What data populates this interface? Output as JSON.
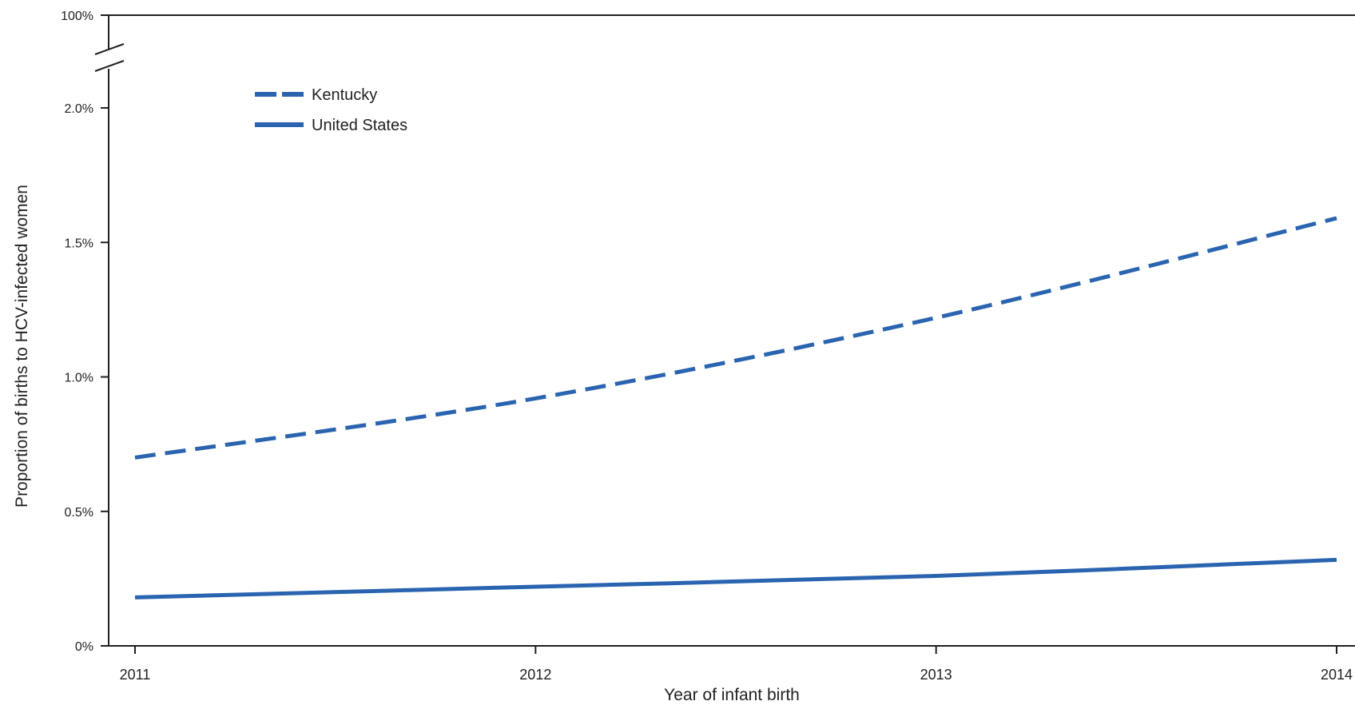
{
  "chart_data": {
    "type": "line",
    "xlabel": "Year of infant birth",
    "ylabel": "Proportion of births to HCV-infected women",
    "x": [
      2011,
      2012,
      2013,
      2014
    ],
    "x_tick_labels": [
      "2011",
      "2012",
      "2013",
      "2014"
    ],
    "y_tick_values": [
      0,
      0.5,
      1.0,
      1.5,
      2.0
    ],
    "y_tick_labels": [
      "0%",
      "0.5%",
      "1.0%",
      "1.5%",
      "2.0%"
    ],
    "y_break_top_label": "100%",
    "y_break_top_value": 100,
    "ylim": [
      0,
      2.0
    ],
    "axis_break": true,
    "grid": false,
    "legend_position": "top-left",
    "series": [
      {
        "name": "Kentucky",
        "style": "dashed",
        "color": "#2a64b0",
        "values": [
          0.7,
          0.92,
          1.22,
          1.59
        ]
      },
      {
        "name": "United States",
        "style": "solid",
        "color": "#2a64b0",
        "values": [
          0.18,
          0.22,
          0.26,
          0.32
        ]
      }
    ]
  }
}
